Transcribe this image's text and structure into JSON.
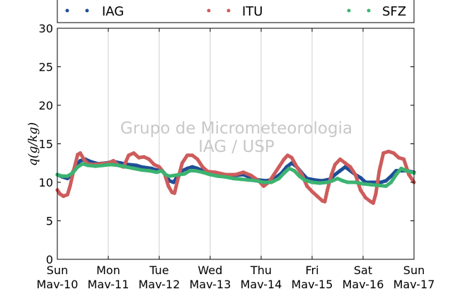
{
  "chart_data": {
    "type": "scatter",
    "title": "",
    "ylabel": "q(g/kg)",
    "xlabel": "",
    "ylim": [
      0,
      30
    ],
    "yticks": [
      0,
      5,
      10,
      15,
      20,
      25,
      30
    ],
    "xlim_days": [
      0,
      7
    ],
    "x_ticks": [
      {
        "day": "Sun",
        "date": "Mav-10"
      },
      {
        "day": "Mon",
        "date": "Mav-11"
      },
      {
        "day": "Tue",
        "date": "Mav-12"
      },
      {
        "day": "Wed",
        "date": "Mav-13"
      },
      {
        "day": "Thu",
        "date": "Mav-14"
      },
      {
        "day": "Fri",
        "date": "Mav-15"
      },
      {
        "day": "Sat",
        "date": "Mav-16"
      },
      {
        "day": "Sun",
        "date": "Mav-17"
      }
    ],
    "grid": "vertical",
    "legend_position": "top",
    "watermark": [
      "Grupo de Micrometeorologia",
      "IAG / USP"
    ],
    "series": [
      {
        "name": "IAG",
        "color": "#1f4e96",
        "points": [
          [
            0.0,
            11.0
          ],
          [
            0.1,
            10.7
          ],
          [
            0.2,
            10.5
          ],
          [
            0.28,
            11.0
          ],
          [
            0.35,
            12.0
          ],
          [
            0.45,
            12.8
          ],
          [
            0.55,
            13.0
          ],
          [
            0.65,
            12.7
          ],
          [
            0.8,
            12.4
          ],
          [
            0.95,
            12.5
          ],
          [
            1.1,
            12.7
          ],
          [
            1.25,
            12.5
          ],
          [
            1.4,
            12.3
          ],
          [
            1.55,
            12.2
          ],
          [
            1.65,
            12.0
          ],
          [
            1.75,
            11.9
          ],
          [
            1.85,
            11.8
          ],
          [
            1.95,
            11.6
          ],
          [
            2.05,
            11.5
          ],
          [
            2.12,
            11.0
          ],
          [
            2.2,
            10.2
          ],
          [
            2.28,
            10.0
          ],
          [
            2.36,
            10.8
          ],
          [
            2.45,
            11.5
          ],
          [
            2.55,
            11.8
          ],
          [
            2.65,
            12.0
          ],
          [
            2.75,
            11.8
          ],
          [
            2.9,
            11.4
          ],
          [
            3.05,
            11.2
          ],
          [
            3.2,
            11.0
          ],
          [
            3.35,
            10.8
          ],
          [
            3.5,
            10.9
          ],
          [
            3.65,
            11.0
          ],
          [
            3.8,
            10.6
          ],
          [
            3.95,
            10.3
          ],
          [
            4.1,
            10.2
          ],
          [
            4.25,
            10.4
          ],
          [
            4.4,
            11.2
          ],
          [
            4.5,
            12.0
          ],
          [
            4.6,
            12.5
          ],
          [
            4.7,
            12.0
          ],
          [
            4.8,
            11.2
          ],
          [
            4.9,
            10.5
          ],
          [
            5.05,
            10.3
          ],
          [
            5.2,
            10.2
          ],
          [
            5.35,
            10.4
          ],
          [
            5.45,
            11.0
          ],
          [
            5.55,
            11.5
          ],
          [
            5.65,
            12.0
          ],
          [
            5.75,
            11.5
          ],
          [
            5.85,
            11.0
          ],
          [
            5.95,
            10.6
          ],
          [
            6.05,
            10.0
          ],
          [
            6.15,
            10.0
          ],
          [
            6.25,
            10.0
          ],
          [
            6.35,
            10.0
          ],
          [
            6.45,
            10.2
          ],
          [
            6.55,
            10.8
          ],
          [
            6.65,
            11.5
          ],
          [
            6.75,
            11.5
          ],
          [
            6.85,
            11.5
          ],
          [
            7.0,
            11.3
          ]
        ]
      },
      {
        "name": "ITU",
        "color": "#cd5c5c",
        "points": [
          [
            0.0,
            9.0
          ],
          [
            0.05,
            8.5
          ],
          [
            0.12,
            8.2
          ],
          [
            0.2,
            8.4
          ],
          [
            0.25,
            9.5
          ],
          [
            0.32,
            11.5
          ],
          [
            0.4,
            13.6
          ],
          [
            0.45,
            13.8
          ],
          [
            0.52,
            13.0
          ],
          [
            0.6,
            12.4
          ],
          [
            0.7,
            12.3
          ],
          [
            0.85,
            12.4
          ],
          [
            1.0,
            12.5
          ],
          [
            1.1,
            12.8
          ],
          [
            1.2,
            12.2
          ],
          [
            1.3,
            12.0
          ],
          [
            1.4,
            13.5
          ],
          [
            1.5,
            13.8
          ],
          [
            1.6,
            13.2
          ],
          [
            1.7,
            13.3
          ],
          [
            1.8,
            13.0
          ],
          [
            1.9,
            12.3
          ],
          [
            2.0,
            12.0
          ],
          [
            2.1,
            11.2
          ],
          [
            2.18,
            9.5
          ],
          [
            2.25,
            8.7
          ],
          [
            2.3,
            8.6
          ],
          [
            2.35,
            10.0
          ],
          [
            2.45,
            12.5
          ],
          [
            2.55,
            13.5
          ],
          [
            2.65,
            13.5
          ],
          [
            2.75,
            13.0
          ],
          [
            2.85,
            12.0
          ],
          [
            2.95,
            11.4
          ],
          [
            3.1,
            11.3
          ],
          [
            3.3,
            11.0
          ],
          [
            3.5,
            11.0
          ],
          [
            3.65,
            11.3
          ],
          [
            3.8,
            10.9
          ],
          [
            3.95,
            10.2
          ],
          [
            4.05,
            9.5
          ],
          [
            4.15,
            10.0
          ],
          [
            4.25,
            11.0
          ],
          [
            4.35,
            12.0
          ],
          [
            4.45,
            13.0
          ],
          [
            4.52,
            13.5
          ],
          [
            4.6,
            13.2
          ],
          [
            4.7,
            12.0
          ],
          [
            4.8,
            11.0
          ],
          [
            4.9,
            9.5
          ],
          [
            5.0,
            8.8
          ],
          [
            5.1,
            8.2
          ],
          [
            5.2,
            7.6
          ],
          [
            5.25,
            7.5
          ],
          [
            5.3,
            9.0
          ],
          [
            5.38,
            11.0
          ],
          [
            5.45,
            12.3
          ],
          [
            5.55,
            13.0
          ],
          [
            5.65,
            12.5
          ],
          [
            5.75,
            12.0
          ],
          [
            5.85,
            11.0
          ],
          [
            5.95,
            9.0
          ],
          [
            6.05,
            8.0
          ],
          [
            6.15,
            7.5
          ],
          [
            6.2,
            7.3
          ],
          [
            6.25,
            8.5
          ],
          [
            6.32,
            11.5
          ],
          [
            6.4,
            13.8
          ],
          [
            6.5,
            14.0
          ],
          [
            6.6,
            13.8
          ],
          [
            6.7,
            13.2
          ],
          [
            6.8,
            13.0
          ],
          [
            6.9,
            11.0
          ],
          [
            7.0,
            10.0
          ]
        ]
      },
      {
        "name": "SFZ",
        "color": "#3cb371",
        "points": [
          [
            0.0,
            11.0
          ],
          [
            0.1,
            10.8
          ],
          [
            0.2,
            10.8
          ],
          [
            0.3,
            11.2
          ],
          [
            0.4,
            12.0
          ],
          [
            0.5,
            12.4
          ],
          [
            0.6,
            12.2
          ],
          [
            0.75,
            12.1
          ],
          [
            0.9,
            12.2
          ],
          [
            1.05,
            12.3
          ],
          [
            1.2,
            12.2
          ],
          [
            1.35,
            12.0
          ],
          [
            1.5,
            11.8
          ],
          [
            1.65,
            11.6
          ],
          [
            1.8,
            11.5
          ],
          [
            1.95,
            11.3
          ],
          [
            2.05,
            11.5
          ],
          [
            2.12,
            11.0
          ],
          [
            2.2,
            10.8
          ],
          [
            2.3,
            10.9
          ],
          [
            2.4,
            11.0
          ],
          [
            2.5,
            11.1
          ],
          [
            2.6,
            11.5
          ],
          [
            2.7,
            11.5
          ],
          [
            2.85,
            11.3
          ],
          [
            3.0,
            11.0
          ],
          [
            3.15,
            10.8
          ],
          [
            3.3,
            10.7
          ],
          [
            3.45,
            10.5
          ],
          [
            3.6,
            10.4
          ],
          [
            3.75,
            10.3
          ],
          [
            3.9,
            10.2
          ],
          [
            4.05,
            10.0
          ],
          [
            4.2,
            10.0
          ],
          [
            4.35,
            10.5
          ],
          [
            4.45,
            11.2
          ],
          [
            4.55,
            11.8
          ],
          [
            4.65,
            11.5
          ],
          [
            4.75,
            10.8
          ],
          [
            4.85,
            10.3
          ],
          [
            5.0,
            10.0
          ],
          [
            5.15,
            9.9
          ],
          [
            5.3,
            10.0
          ],
          [
            5.4,
            10.2
          ],
          [
            5.5,
            10.5
          ],
          [
            5.6,
            10.2
          ],
          [
            5.7,
            10.0
          ],
          [
            5.85,
            10.0
          ],
          [
            6.0,
            9.8
          ],
          [
            6.15,
            9.7
          ],
          [
            6.3,
            9.6
          ],
          [
            6.45,
            9.5
          ],
          [
            6.55,
            10.0
          ],
          [
            6.65,
            11.0
          ],
          [
            6.75,
            11.8
          ],
          [
            6.85,
            11.5
          ],
          [
            7.0,
            11.2
          ]
        ]
      }
    ]
  }
}
